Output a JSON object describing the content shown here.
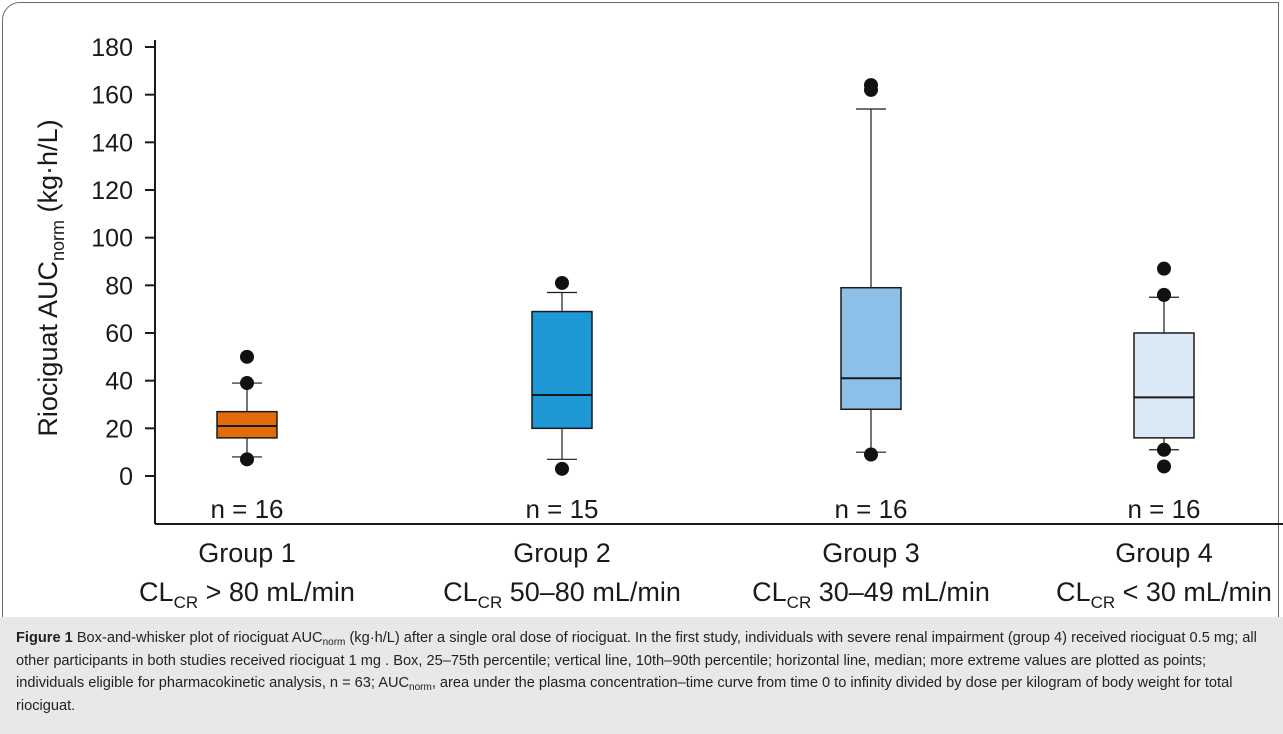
{
  "chart_data": {
    "type": "box",
    "ylabel_main": "Riociguat AUC",
    "ylabel_sub": "norm",
    "ylabel_unit": "(kg·h/L)",
    "ylim": [
      0,
      180
    ],
    "yticks": [
      0,
      20,
      40,
      60,
      80,
      100,
      120,
      140,
      160,
      180
    ],
    "groups": [
      {
        "name": "Group 1",
        "cl_sub": "CR",
        "cl_text": "> 80 mL/min",
        "n_label": "n = 16",
        "color": "#e36c0a",
        "whisker_low": 8,
        "q1": 16,
        "median": 21,
        "q3": 27,
        "whisker_high": 39,
        "outliers": [
          7,
          39,
          50
        ]
      },
      {
        "name": "Group 2",
        "cl_sub": "CR",
        "cl_text": "50–80 mL/min",
        "n_label": "n = 15",
        "color": "#1f98d6",
        "whisker_low": 7,
        "q1": 20,
        "median": 34,
        "q3": 69,
        "whisker_high": 77,
        "outliers": [
          3,
          81
        ]
      },
      {
        "name": "Group 3",
        "cl_sub": "CR",
        "cl_text": "30–49 mL/min",
        "n_label": "n = 16",
        "color": "#8cc0e8",
        "whisker_low": 10,
        "q1": 28,
        "median": 41,
        "q3": 79,
        "whisker_high": 154,
        "outliers": [
          9,
          162,
          164
        ]
      },
      {
        "name": "Group 4",
        "cl_sub": "CR",
        "cl_text": "< 30 mL/min",
        "n_label": "n = 16",
        "color": "#dbe9f7",
        "whisker_low": 11,
        "q1": 16,
        "median": 33,
        "q3": 60,
        "whisker_high": 75,
        "outliers": [
          4,
          11,
          76,
          87
        ]
      }
    ]
  },
  "caption": {
    "label": "Figure 1",
    "text_before_sub": " Box-and-whisker plot of riociguat AUC",
    "sub": "norm",
    "text_after_sub": " (kg·h/L) after a single oral dose of riociguat. In the first study, individuals with severe renal impairment (group 4) received riociguat 0.5 mg; all other participants in both studies received riociguat 1 mg . Box, 25–75th percentile; vertical line, 10th–90th percentile; horizontal line, median; more extreme values are plotted as points; individuals eligible for pharmacokinetic analysis, n = 63; AUC",
    "sub2": "norm",
    "text_end": ", area under the plasma concentration–time curve from time 0 to infinity divided by dose per kilogram of body weight for total riociguat."
  }
}
